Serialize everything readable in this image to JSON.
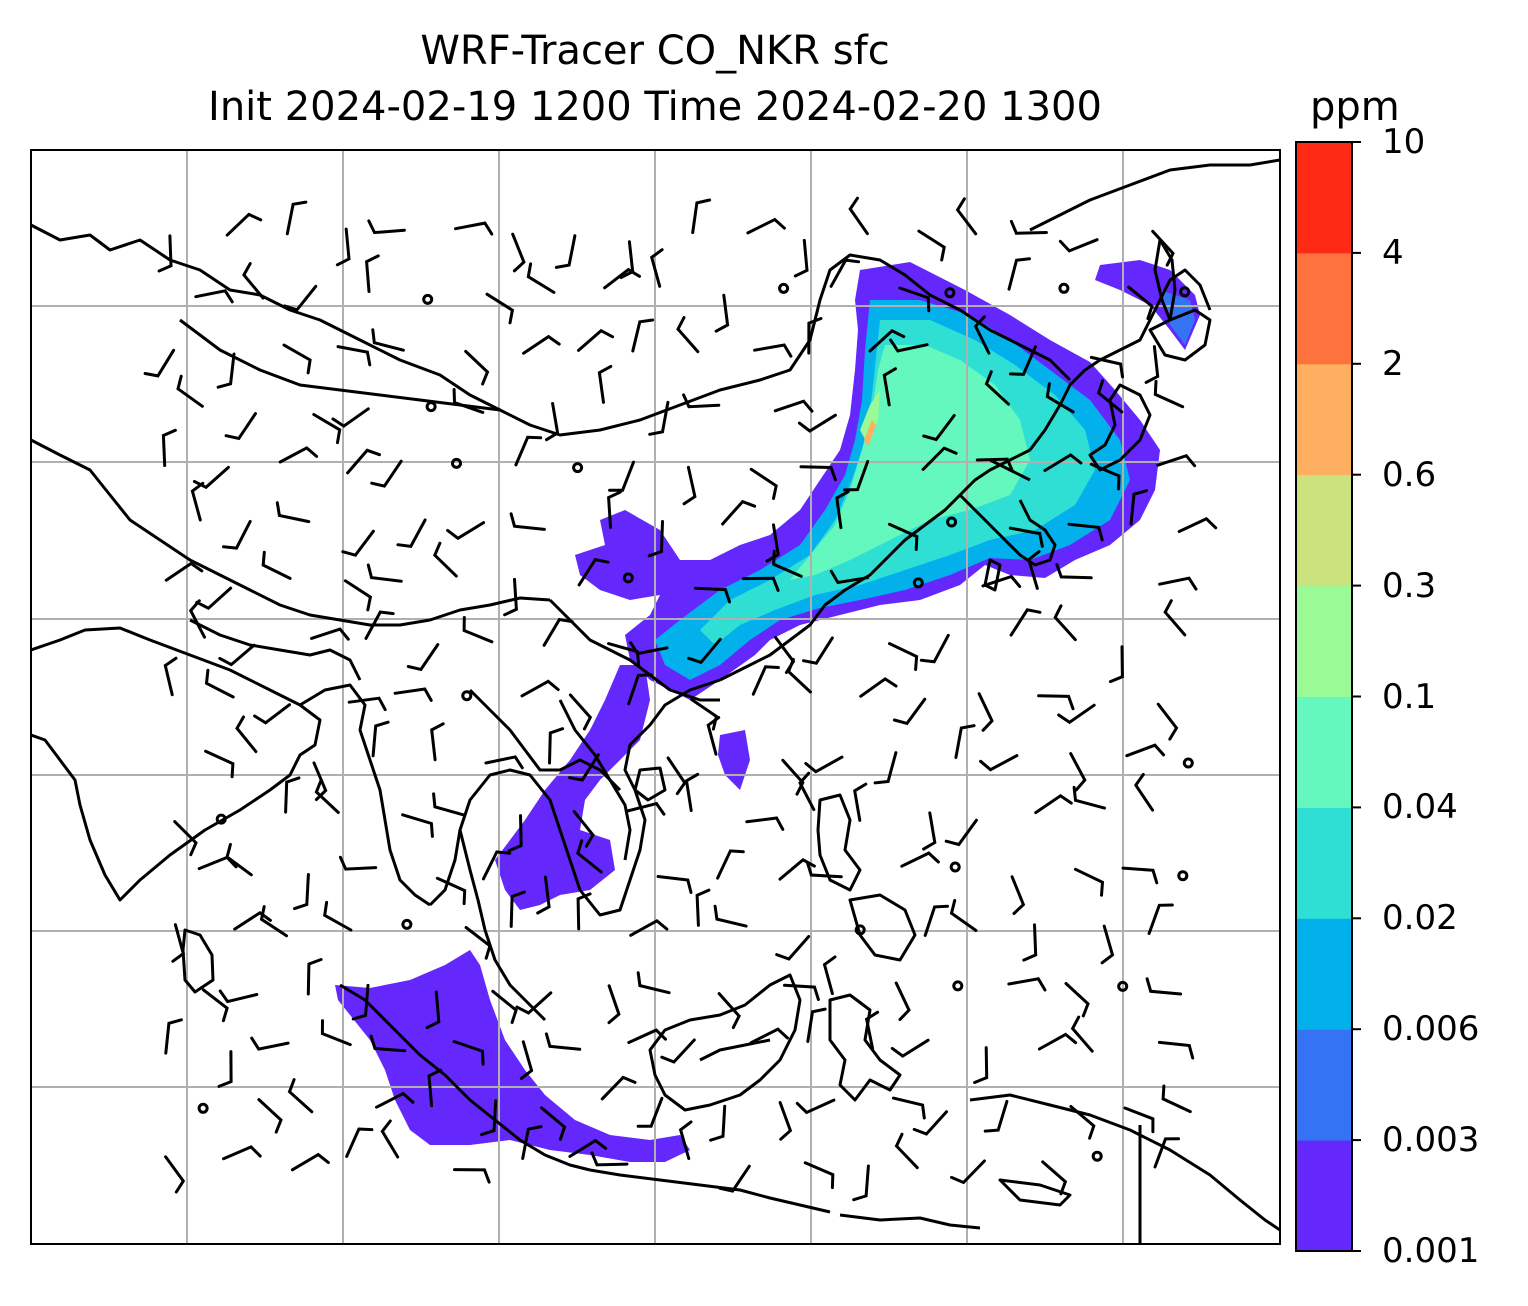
{
  "title": {
    "line1": "WRF-Tracer CO_NKR sfc",
    "line2": "Init 2024-02-19 1200 Time 2024-02-20 1300"
  },
  "colorbar": {
    "unit": "ppm",
    "levels": [
      "0.001",
      "0.003",
      "0.006",
      "0.02",
      "0.04",
      "0.1",
      "0.3",
      "0.6",
      "2",
      "4",
      "10"
    ],
    "colors": [
      "#6428fc",
      "#3373f4",
      "#02b1ec",
      "#30dfd4",
      "#65f8be",
      "#99fa96",
      "#cce27f",
      "#feaf5f",
      "#fe723e",
      "#fe2a16"
    ]
  },
  "map": {
    "overlays": [
      "coastlines",
      "country-borders",
      "gridlines",
      "wind-barbs",
      "tracer-concentration-fill"
    ],
    "gridline_color": "#b0b0b0",
    "coast_color": "#000000"
  }
}
